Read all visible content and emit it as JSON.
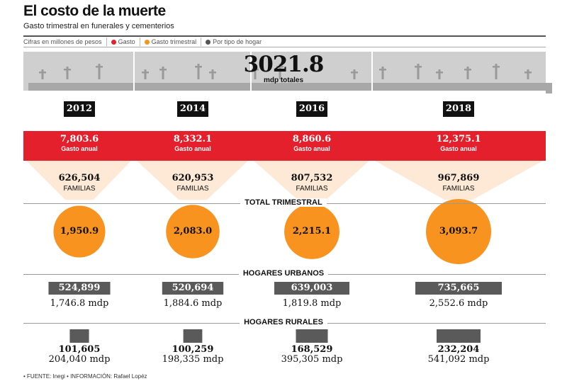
{
  "header": {
    "title": "El costo de la muerte",
    "subtitle": "Gasto trimestral en funerales y cementerios"
  },
  "legend": {
    "units": "Cifras en millones de pesos",
    "items": [
      {
        "label": "Gasto",
        "color": "#e3202b"
      },
      {
        "label": "Gasto trimestral",
        "color": "#f7931e"
      },
      {
        "label": "Por tipo de hogar",
        "color": "#555555"
      }
    ]
  },
  "total": {
    "value": "3021.8",
    "label": "mdp totales"
  },
  "labels": {
    "gasto_anual": "Gasto anual",
    "familias": "FAMILIAS",
    "total_trimestral": "TOTAL TRIMESTRAL",
    "hogares_urbanos": "HOGARES URBANOS",
    "hogares_rurales": "HOGARES RURALES"
  },
  "colors": {
    "red": "#e3202b",
    "orange": "#f7931e",
    "gray": "#5a5a5a",
    "band": "#cfcfcf"
  },
  "footer": "• FUENTE: Inegi • INFORMACIÓN: Rafael Lopéz",
  "chart_data": {
    "type": "table",
    "categories": [
      "2012",
      "2014",
      "2016",
      "2018"
    ],
    "gasto_anual": [
      "7,803.6",
      "8,332.1",
      "8,860.6",
      "12,375.1"
    ],
    "familias": [
      "626,504",
      "620,953",
      "807,532",
      "967,869"
    ],
    "total_trimestral": [
      "1,950.9",
      "2,083.0",
      "2,215.1",
      "3,093.7"
    ],
    "total_trimestral_values": [
      1950.9,
      2083.0,
      2215.1,
      3093.7
    ],
    "hogares_urbanos": [
      "524,899",
      "520,694",
      "639,003",
      "735,665"
    ],
    "hogares_urbanos_values": [
      524899,
      520694,
      639003,
      735665
    ],
    "hogares_urbanos_mdp": [
      "1,746.8 mdp",
      "1,884.6 mdp",
      "1,819.8 mdp",
      "2,552.6 mdp"
    ],
    "hogares_rurales": [
      "101,605",
      "100,259",
      "168,529",
      "232,204"
    ],
    "hogares_rurales_values": [
      101605,
      100259,
      168529,
      232204
    ],
    "hogares_rurales_mdp": [
      "204,040 mdp",
      "198,335 mdp",
      "395,305 mdp",
      "541,092 mdp"
    ]
  }
}
